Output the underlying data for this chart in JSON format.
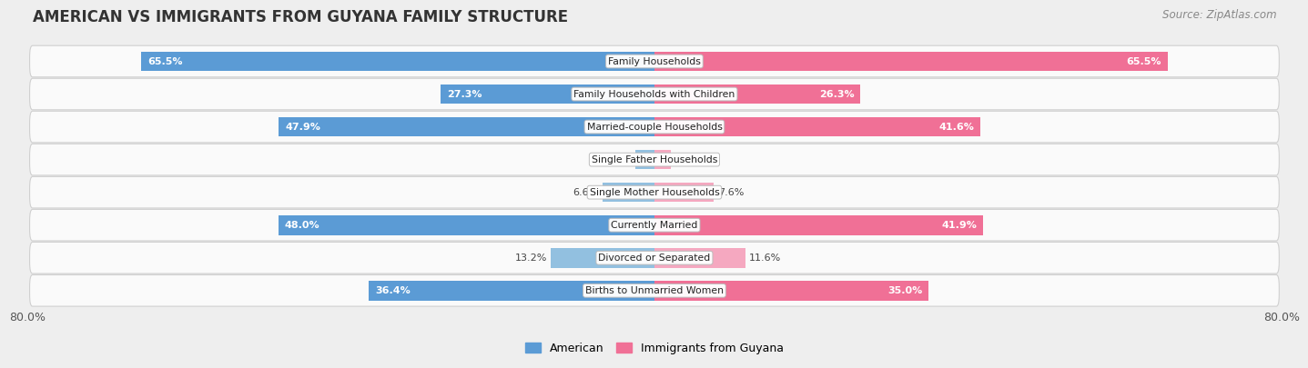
{
  "title": "AMERICAN VS IMMIGRANTS FROM GUYANA FAMILY STRUCTURE",
  "source": "Source: ZipAtlas.com",
  "categories": [
    "Family Households",
    "Family Households with Children",
    "Married-couple Households",
    "Single Father Households",
    "Single Mother Households",
    "Currently Married",
    "Divorced or Separated",
    "Births to Unmarried Women"
  ],
  "american_values": [
    65.5,
    27.3,
    47.9,
    2.4,
    6.6,
    48.0,
    13.2,
    36.4
  ],
  "guyana_values": [
    65.5,
    26.3,
    41.6,
    2.1,
    7.6,
    41.9,
    11.6,
    35.0
  ],
  "american_color_dark": "#5b9bd5",
  "american_color_light": "#92c0e0",
  "guyana_color_dark": "#f07096",
  "guyana_color_light": "#f5a8c0",
  "background_color": "#eeeeee",
  "row_bg_color": "#fafafa",
  "max_value": 80.0,
  "x_left_label": "80.0%",
  "x_right_label": "80.0%",
  "legend_american": "American",
  "legend_guyana": "Immigrants from Guyana",
  "title_fontsize": 12,
  "source_fontsize": 8.5,
  "bar_height": 0.6,
  "label_fontsize": 8,
  "dark_threshold": 25
}
